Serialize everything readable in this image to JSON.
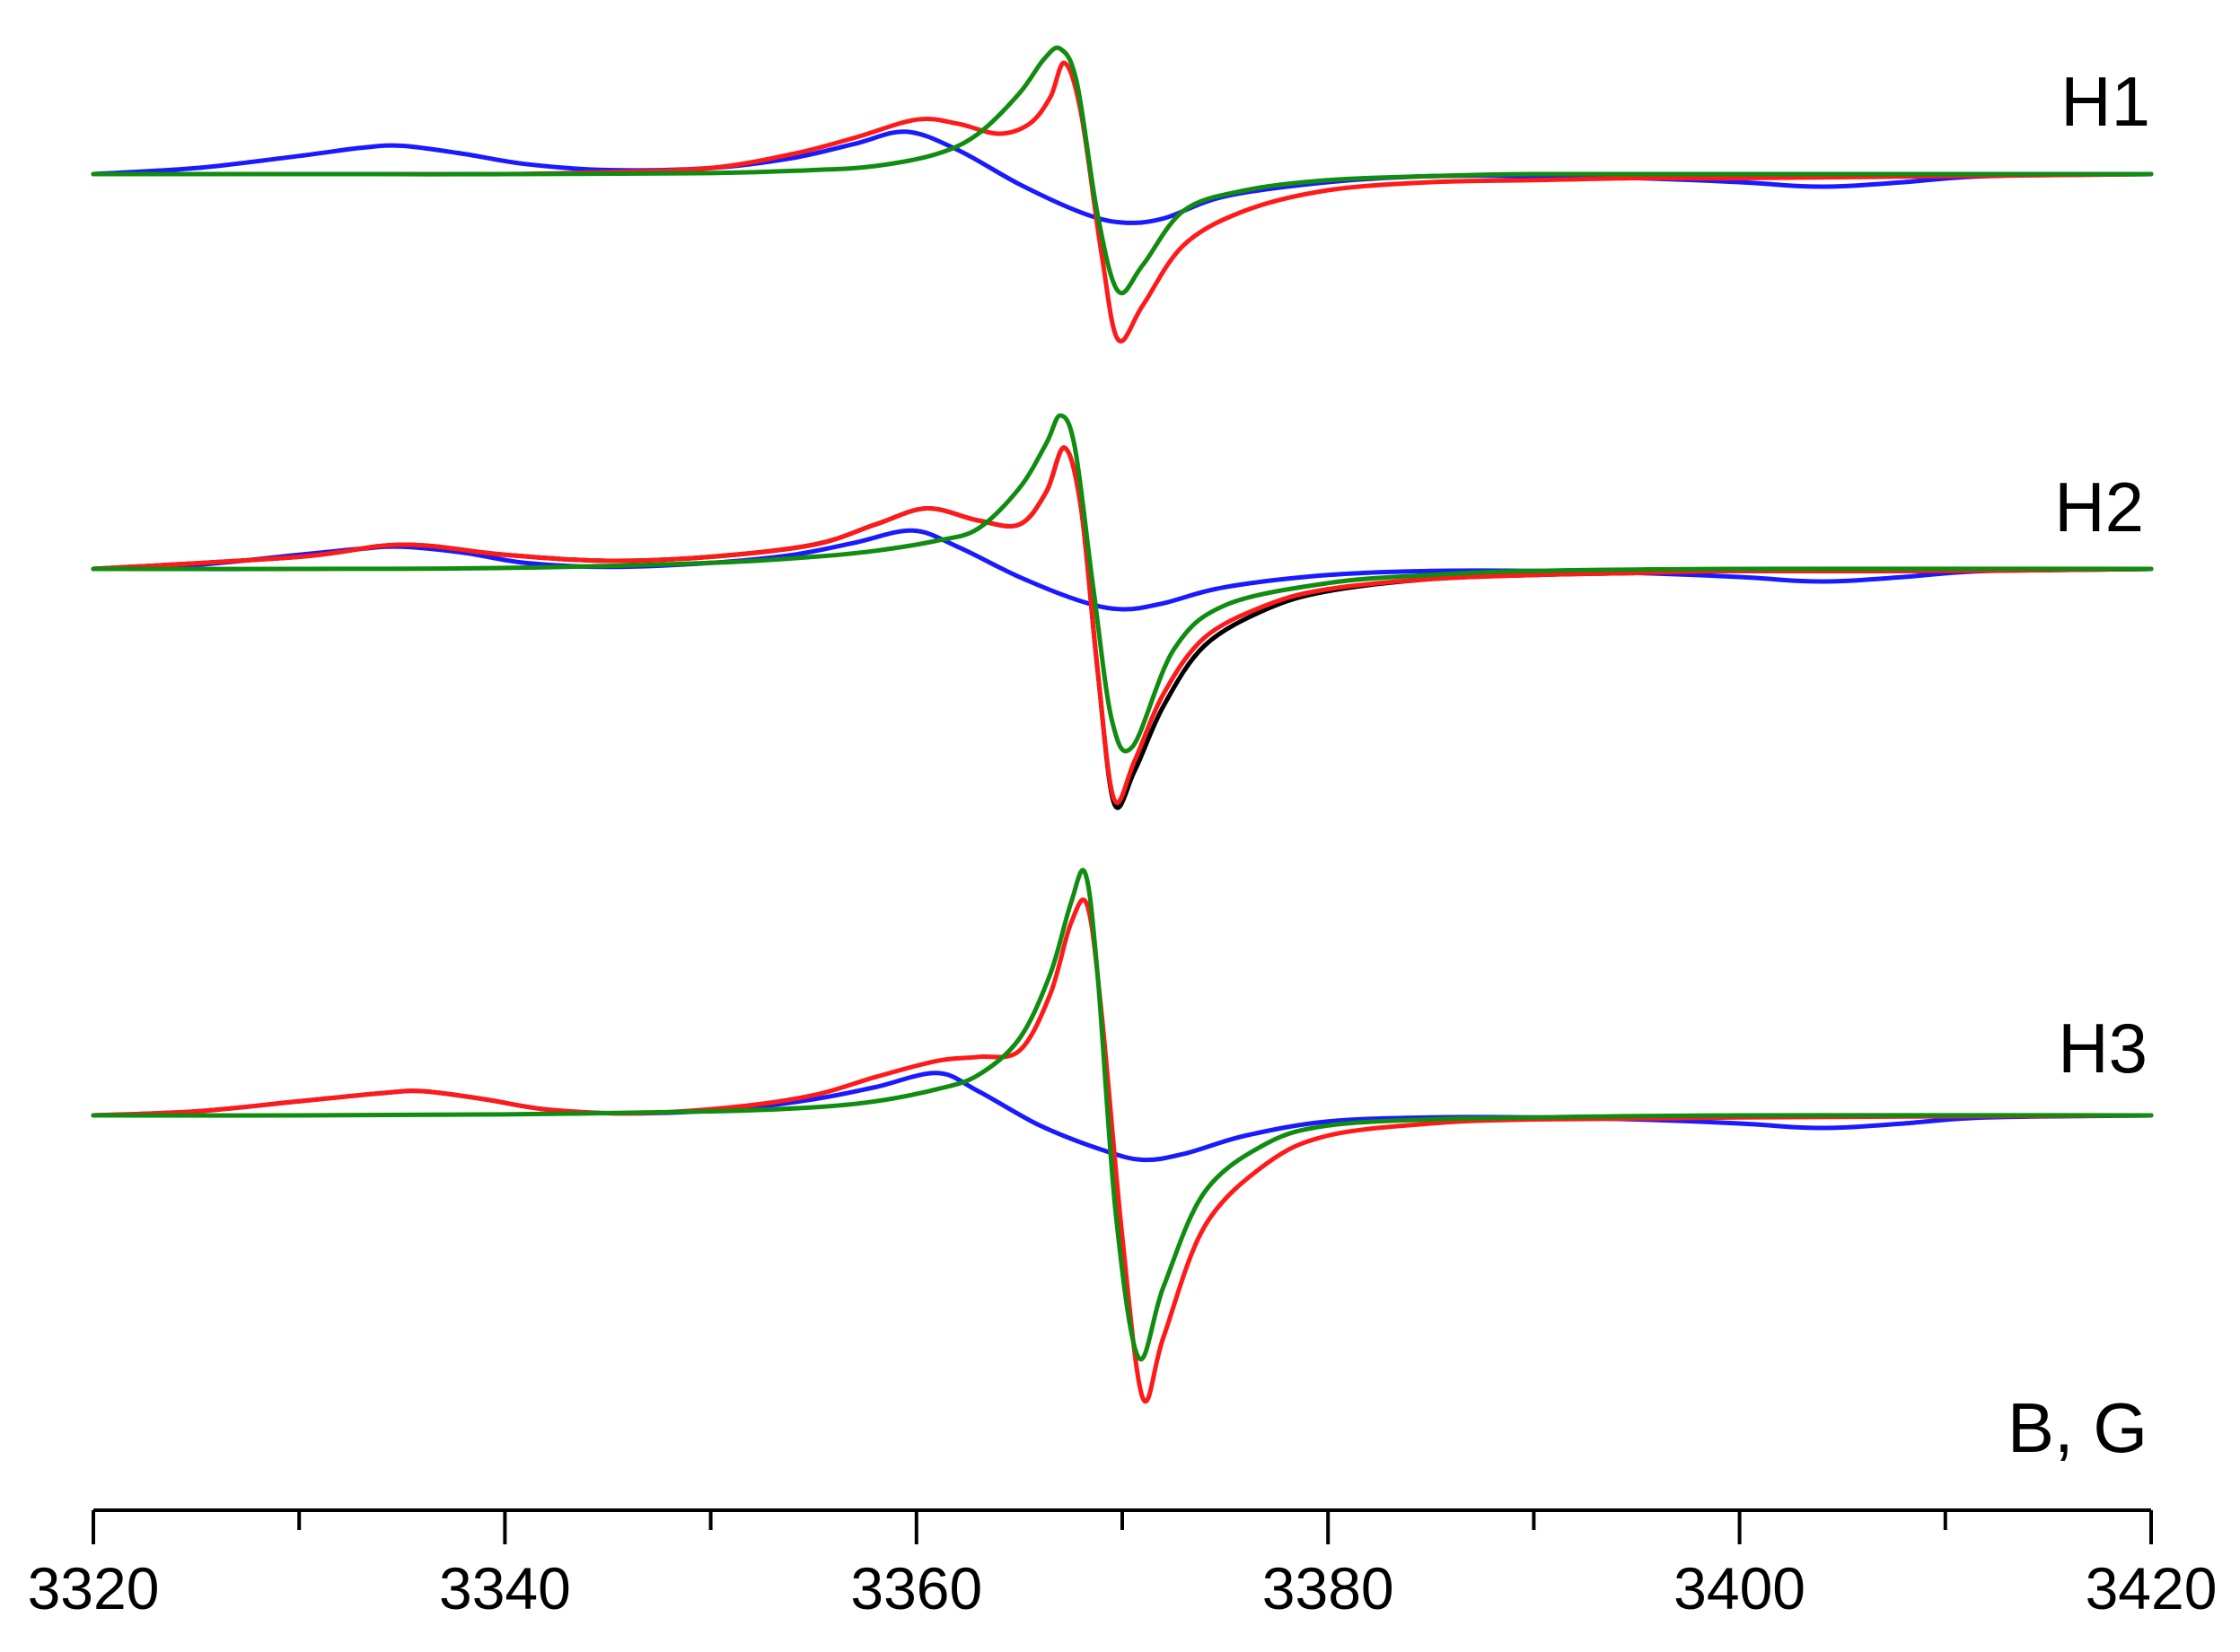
{
  "chart_data": {
    "type": "line",
    "xlabel": "B, G",
    "xlim": [
      3320,
      3420
    ],
    "x_ticks": [
      "3320",
      "3340",
      "3360",
      "3380",
      "3400",
      "3420"
    ],
    "colors": {
      "blue": "#1a1aff",
      "red": "#ff1a1a",
      "green": "#108c10",
      "black": "#000000",
      "axis": "#000000"
    },
    "panels": [
      {
        "label": "H1",
        "series": [
          {
            "color": "blue",
            "x": [
              3320,
              3325,
              3330,
              3333,
              3335,
              3338,
              3341,
              3345,
              3350,
              3354,
              3357,
              3359.5,
              3362,
              3365,
              3368,
              3370,
              3372,
              3375,
              3380,
              3385,
              3390,
              3395,
              3400,
              3403,
              3405,
              3408,
              3412,
              3420
            ],
            "y": [
              0,
              0.03,
              0.09,
              0.13,
              0.14,
              0.1,
              0.05,
              0.02,
              0.03,
              0.08,
              0.15,
              0.21,
              0.12,
              -0.05,
              -0.19,
              -0.24,
              -0.22,
              -0.11,
              -0.04,
              -0.01,
              -0.01,
              -0.02,
              -0.04,
              -0.06,
              -0.06,
              -0.04,
              -0.01,
              0
            ]
          },
          {
            "color": "red",
            "x": [
              3320,
              3325,
              3330,
              3335,
              3340,
              3345,
              3350,
              3354,
              3357,
              3360,
              3362,
              3364,
              3365.5,
              3366.5,
              3367.2,
              3368,
              3369,
              3369.8,
              3371,
              3373,
              3376,
              3380,
              3385,
              3390,
              3395,
              3400,
              3410,
              3420
            ],
            "y": [
              0,
              0,
              0,
              0,
              0,
              0.01,
              0.03,
              0.1,
              0.18,
              0.27,
              0.25,
              0.2,
              0.25,
              0.38,
              0.55,
              0.3,
              -0.4,
              -0.82,
              -0.65,
              -0.35,
              -0.18,
              -0.08,
              -0.04,
              -0.03,
              -0.02,
              -0.02,
              -0.01,
              0
            ]
          },
          {
            "color": "green",
            "x": [
              3320,
              3330,
              3340,
              3350,
              3355,
              3358,
              3361,
              3363,
              3365,
              3366.2,
              3367,
              3367.8,
              3368.8,
              3369.8,
              3371,
              3373,
              3376,
              3380,
              3385,
              3390,
              3400,
              3420
            ],
            "y": [
              0,
              0,
              0,
              0.005,
              0.02,
              0.04,
              0.1,
              0.2,
              0.4,
              0.57,
              0.62,
              0.45,
              -0.2,
              -0.58,
              -0.45,
              -0.18,
              -0.08,
              -0.03,
              -0.01,
              0,
              0,
              0
            ]
          }
        ]
      },
      {
        "label": "H2",
        "series": [
          {
            "color": "blue",
            "x": [
              3320,
              3325,
              3330,
              3333,
              3335,
              3338,
              3341,
              3345,
              3350,
              3354,
              3357,
              3359.8,
              3362,
              3365,
              3368,
              3370,
              3372,
              3375,
              3380,
              3385,
              3390,
              3395,
              3400,
              3403,
              3405,
              3408,
              3412,
              3420
            ],
            "y": [
              0,
              0.02,
              0.07,
              0.1,
              0.11,
              0.08,
              0.03,
              0.01,
              0.03,
              0.07,
              0.13,
              0.19,
              0.11,
              -0.04,
              -0.16,
              -0.2,
              -0.17,
              -0.09,
              -0.03,
              -0.01,
              -0.01,
              -0.02,
              -0.04,
              -0.06,
              -0.06,
              -0.04,
              -0.01,
              0
            ]
          },
          {
            "color": "black",
            "x": [
              3320,
              3330,
              3335,
              3340,
              3345,
              3350,
              3355,
              3358,
              3360.5,
              3363,
              3365,
              3366.3,
              3367.2,
              3368,
              3368.8,
              3369.6,
              3370.6,
              3372,
              3374,
              3377,
              3380,
              3385,
              3390,
              3395,
              3400,
              3410,
              3420
            ],
            "y": [
              0,
              0.06,
              0.12,
              0.07,
              0.04,
              0.06,
              0.12,
              0.22,
              0.3,
              0.24,
              0.22,
              0.38,
              0.6,
              0.3,
              -0.5,
              -1.16,
              -1.0,
              -0.68,
              -0.38,
              -0.2,
              -0.11,
              -0.05,
              -0.03,
              -0.02,
              -0.01,
              -0.01,
              0
            ]
          },
          {
            "color": "red",
            "x": [
              3320,
              3330,
              3335,
              3340,
              3345,
              3350,
              3355,
              3358,
              3360.5,
              3363,
              3365,
              3366.3,
              3367.2,
              3368,
              3368.8,
              3369.6,
              3370.6,
              3372,
              3374,
              3377,
              3380,
              3385,
              3390,
              3395,
              3400,
              3410,
              3420
            ],
            "y": [
              0,
              0.06,
              0.12,
              0.07,
              0.04,
              0.06,
              0.12,
              0.22,
              0.3,
              0.24,
              0.22,
              0.38,
              0.6,
              0.3,
              -0.5,
              -1.14,
              -0.95,
              -0.62,
              -0.34,
              -0.18,
              -0.1,
              -0.05,
              -0.03,
              -0.02,
              -0.01,
              -0.01,
              0
            ]
          },
          {
            "color": "green",
            "x": [
              3320,
              3330,
              3340,
              3350,
              3355,
              3358,
              3361,
              3363,
              3365,
              3366.3,
              3367,
              3367.7,
              3368.6,
              3369.5,
              3370.5,
              3372.5,
              3375,
              3380,
              3385,
              3390,
              3400,
              3420
            ],
            "y": [
              0,
              0,
              0.005,
              0.03,
              0.06,
              0.09,
              0.14,
              0.2,
              0.4,
              0.62,
              0.76,
              0.6,
              -0.1,
              -0.75,
              -0.88,
              -0.4,
              -0.18,
              -0.07,
              -0.03,
              -0.01,
              0,
              0
            ]
          }
        ]
      },
      {
        "label": "H3",
        "series": [
          {
            "color": "blue",
            "x": [
              3320,
              3325,
              3330,
              3334,
              3336,
              3339,
              3342,
              3346,
              3351,
              3355,
              3358,
              3361,
              3363,
              3366,
              3369,
              3371,
              3373,
              3376,
              3380,
              3385,
              3390,
              3395,
              3400,
              3403,
              3405,
              3408,
              3412,
              3420
            ],
            "y": [
              0,
              0.02,
              0.07,
              0.11,
              0.12,
              0.08,
              0.03,
              0.01,
              0.03,
              0.08,
              0.14,
              0.21,
              0.12,
              -0.05,
              -0.17,
              -0.22,
              -0.19,
              -0.1,
              -0.03,
              -0.01,
              -0.01,
              -0.02,
              -0.04,
              -0.06,
              -0.06,
              -0.04,
              -0.01,
              0
            ]
          },
          {
            "color": "red",
            "x": [
              3320,
              3325,
              3330,
              3334,
              3336,
              3339,
              3342,
              3346,
              3351,
              3355,
              3358,
              3361,
              3363,
              3365,
              3366.5,
              3367.5,
              3368.3,
              3369,
              3370,
              3371,
              3372,
              3374,
              3377,
              3380,
              3385,
              3390,
              3400,
              3420
            ],
            "y": [
              0,
              0.02,
              0.07,
              0.11,
              0.12,
              0.08,
              0.03,
              0.01,
              0.04,
              0.1,
              0.19,
              0.27,
              0.29,
              0.32,
              0.6,
              0.95,
              1.04,
              0.5,
              -0.6,
              -1.4,
              -1.1,
              -0.55,
              -0.24,
              -0.1,
              -0.04,
              -0.02,
              -0.01,
              0
            ]
          },
          {
            "color": "green",
            "x": [
              3320,
              3330,
              3340,
              3350,
              3355,
              3358,
              3361,
              3363,
              3365,
              3366.5,
              3367.5,
              3368.2,
              3368.8,
              3369.7,
              3370.8,
              3372,
              3374,
              3377,
              3380,
              3385,
              3390,
              3400,
              3420
            ],
            "y": [
              0,
              0,
              0.005,
              0.02,
              0.04,
              0.07,
              0.13,
              0.2,
              0.38,
              0.7,
              1.05,
              1.2,
              0.7,
              -0.5,
              -1.2,
              -0.85,
              -0.38,
              -0.14,
              -0.05,
              -0.02,
              -0.01,
              0,
              0
            ]
          }
        ]
      }
    ]
  }
}
